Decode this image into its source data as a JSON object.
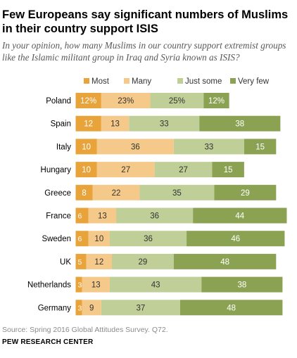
{
  "header": {
    "title": "Few Europeans say significant numbers of Muslims in their country support ISIS",
    "subtitle": "In your opinion, how many Muslims in our country support extremist groups like the Islamic militant group in Iraq and Syria known as ISIS?"
  },
  "footer": {
    "source": "Source: Spring 2016 Global Attitudes Survey. Q72.",
    "org": "PEW RESEARCH CENTER"
  },
  "chart_data": {
    "type": "bar",
    "orientation": "horizontal",
    "stacked": true,
    "categories": [
      "Poland",
      "Spain",
      "Italy",
      "Hungary",
      "Greece",
      "France",
      "Sweden",
      "UK",
      "Netherlands",
      "Germany"
    ],
    "series": [
      {
        "name": "Most",
        "color": "#e8a33a",
        "values": [
          12,
          12,
          10,
          10,
          8,
          6,
          6,
          5,
          3,
          3
        ]
      },
      {
        "name": "Many",
        "color": "#f5c98a",
        "values": [
          23,
          13,
          36,
          27,
          22,
          13,
          10,
          12,
          13,
          9
        ]
      },
      {
        "name": "Just some",
        "color": "#bfcf97",
        "values": [
          25,
          33,
          33,
          27,
          35,
          36,
          36,
          29,
          43,
          37
        ]
      },
      {
        "name": "Very few",
        "color": "#8ca253",
        "values": [
          12,
          38,
          15,
          15,
          29,
          44,
          46,
          48,
          38,
          48
        ]
      }
    ],
    "percent_on_first_row": true,
    "legend_position": "top",
    "grid": false
  }
}
